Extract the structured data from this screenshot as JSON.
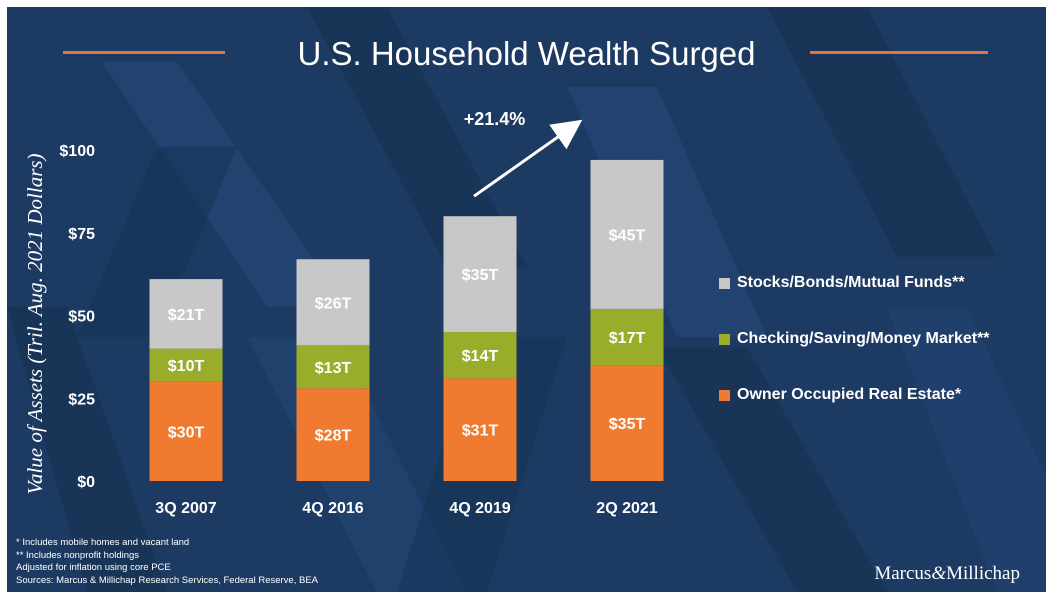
{
  "title": "U.S. Household Wealth Surged",
  "colors": {
    "background": "#1d3a63",
    "accent_rule": "#e0773a",
    "real_estate": "#f07a30",
    "checking": "#9aad2a",
    "stocks": "#c8c8c8"
  },
  "chart_data": {
    "type": "bar",
    "stacked": true,
    "title": "U.S. Household Wealth Surged",
    "ylabel": "Value of Assets (Tril. Aug. 2021 Dollars)",
    "xlabel": "",
    "ylim": [
      0,
      100
    ],
    "yticks": [
      0,
      25,
      50,
      75,
      100
    ],
    "ytick_labels": [
      "$0",
      "$25",
      "$50",
      "$75",
      "$100"
    ],
    "categories": [
      "3Q 2007",
      "4Q 2016",
      "4Q 2019",
      "2Q 2021"
    ],
    "series": [
      {
        "name": "Owner Occupied Real Estate*",
        "values": [
          30,
          28,
          31,
          35
        ],
        "labels": [
          "$30T",
          "$28T",
          "$31T",
          "$35T"
        ],
        "color": "#f07a30"
      },
      {
        "name": "Checking/Saving/Money Market**",
        "values": [
          10,
          13,
          14,
          17
        ],
        "labels": [
          "$10T",
          "$13T",
          "$14T",
          "$17T"
        ],
        "color": "#9aad2a"
      },
      {
        "name": "Stocks/Bonds/Mutual Funds**",
        "values": [
          21,
          26,
          35,
          45
        ],
        "labels": [
          "$21T",
          "$26T",
          "$35T",
          "$45T"
        ],
        "color": "#c8c8c8"
      }
    ],
    "legend_position": "right",
    "grid": false,
    "annotation": {
      "text": "+21.4%",
      "from": "4Q 2019",
      "to": "2Q 2021"
    }
  },
  "legend": [
    {
      "label": "Stocks/Bonds/Mutual Funds**",
      "color": "#c8c8c8"
    },
    {
      "label": "Checking/Saving/Money Market**",
      "color": "#9aad2a"
    },
    {
      "label": "Owner Occupied Real Estate*",
      "color": "#f07a30"
    }
  ],
  "footnotes": [
    "* Includes mobile homes and vacant land",
    "** Includes nonprofit holdings",
    "Adjusted for inflation using core PCE",
    "Sources: Marcus & Millichap Research Services, Federal Reserve, BEA"
  ],
  "logo": {
    "part1": "Marcus",
    "amp": "&",
    "part2": "Millichap"
  }
}
